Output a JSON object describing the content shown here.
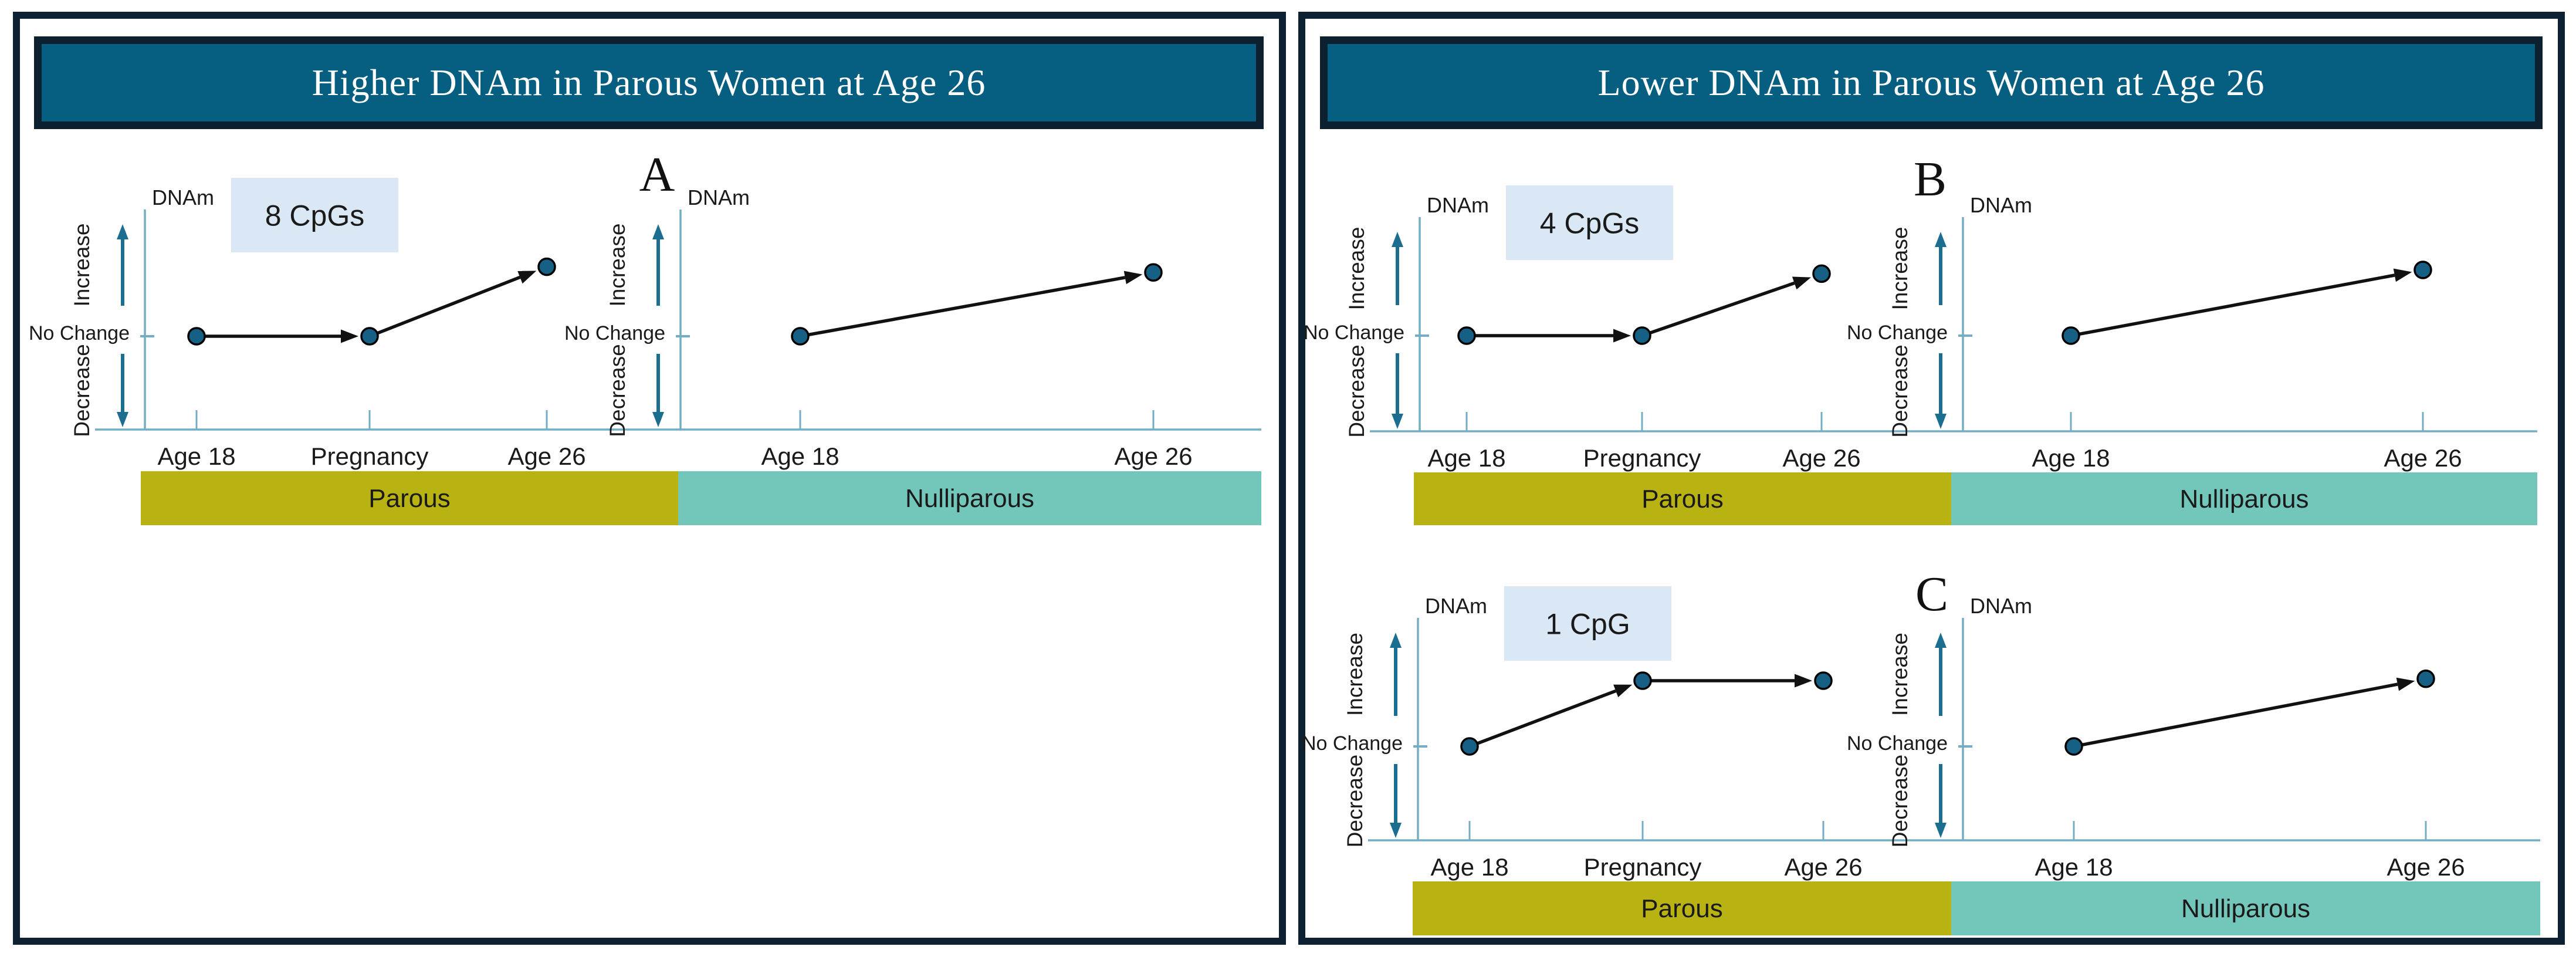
{
  "panels": [
    {
      "title": "Higher DNAm in Parous Women at Age 26",
      "figures": [
        {
          "label": "A",
          "cpg_label": "8 CpGs"
        }
      ]
    },
    {
      "title": "Lower DNAm in Parous Women at Age 26",
      "figures": [
        {
          "label": "B",
          "cpg_label": "4 CpGs"
        },
        {
          "label": "C",
          "cpg_label": "1 CpG"
        }
      ]
    }
  ],
  "axis_labels": {
    "y_title": "DNAm",
    "increase": "Increase",
    "no_change": "No Change",
    "decrease": "Decrease"
  },
  "group_labels": {
    "parous": "Parous",
    "nulliparous": "Nulliparous"
  },
  "chart_data": [
    {
      "figure": "A",
      "panel_title": "Higher DNAm in Parous Women at Age 26",
      "cpg_group": "8 CpGs",
      "cohort": "Parous",
      "type": "line",
      "x": [
        "Age 18",
        "Pregnancy",
        "Age 26"
      ],
      "y": [
        0,
        0,
        0.74
      ],
      "y_units": "qualitative DNAm change (0 = No Change, positive = Increase)",
      "trend": "no change from Age 18 to Pregnancy, then increase by Age 26"
    },
    {
      "figure": "A",
      "panel_title": "Higher DNAm in Parous Women at Age 26",
      "cpg_group": "8 CpGs",
      "cohort": "Nulliparous",
      "type": "line",
      "x": [
        "Age 18",
        "Age 26"
      ],
      "y": [
        0,
        0.68
      ],
      "y_units": "qualitative DNAm change (0 = No Change, positive = Increase)",
      "trend": "gradual increase from Age 18 to Age 26"
    },
    {
      "figure": "B",
      "panel_title": "Lower DNAm in Parous Women at Age 26",
      "cpg_group": "4 CpGs",
      "cohort": "Parous",
      "type": "line",
      "x": [
        "Age 18",
        "Pregnancy",
        "Age 26"
      ],
      "y": [
        0,
        0,
        0.66
      ],
      "y_units": "qualitative DNAm change (0 = No Change, positive = Increase)",
      "trend": "no change from Age 18 to Pregnancy, then increase by Age 26"
    },
    {
      "figure": "B",
      "panel_title": "Lower DNAm in Parous Women at Age 26",
      "cpg_group": "4 CpGs",
      "cohort": "Nulliparous",
      "type": "line",
      "x": [
        "Age 18",
        "Age 26"
      ],
      "y": [
        0,
        0.7
      ],
      "y_units": "qualitative DNAm change (0 = No Change, positive = Increase)",
      "trend": "gradual increase from Age 18 to Age 26"
    },
    {
      "figure": "C",
      "panel_title": "Lower DNAm in Parous Women at Age 26",
      "cpg_group": "1 CpG",
      "cohort": "Parous",
      "type": "line",
      "x": [
        "Age 18",
        "Pregnancy",
        "Age 26"
      ],
      "y": [
        0,
        0.7,
        0.7
      ],
      "y_units": "qualitative DNAm change (0 = No Change, positive = Increase)",
      "trend": "increase from Age 18 to Pregnancy, then no change to Age 26"
    },
    {
      "figure": "C",
      "panel_title": "Lower DNAm in Parous Women at Age 26",
      "cpg_group": "1 CpG",
      "cohort": "Nulliparous",
      "type": "line",
      "x": [
        "Age 18",
        "Age 26"
      ],
      "y": [
        0,
        0.72
      ],
      "y_units": "qualitative DNAm change (0 = No Change, positive = Increase)",
      "trend": "gradual increase from Age 18 to Age 26"
    }
  ],
  "colors": {
    "header_bg": "#065e81",
    "frame": "#0d2133",
    "parous_band": "#b8b212",
    "nulliparous_band": "#72c7ba",
    "cpg_box": "#dae8f6",
    "point": "#156084",
    "axis": "#74aec4",
    "axis_arrow": "#1c6e90",
    "connector": "#111111",
    "text": "#1a1a1a"
  }
}
